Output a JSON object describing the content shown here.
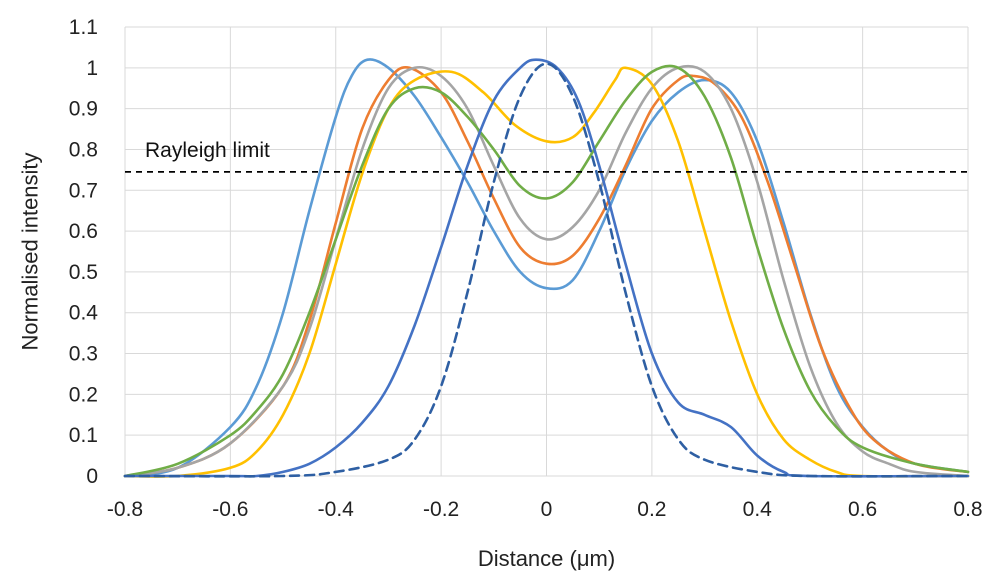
{
  "chart_data": {
    "type": "line",
    "xlabel": "Distance (μm)",
    "ylabel": "Normalised intensity",
    "xlim": [
      -0.8,
      0.8
    ],
    "ylim": [
      0,
      1.1
    ],
    "x_ticks": [
      "-0.8",
      "-0.6",
      "-0.4",
      "-0.2",
      "0",
      "0.2",
      "0.4",
      "0.6",
      "0.8"
    ],
    "y_ticks": [
      "0",
      "0.1",
      "0.2",
      "0.3",
      "0.4",
      "0.5",
      "0.6",
      "0.7",
      "0.8",
      "0.9",
      "1",
      "1.1"
    ],
    "grid": true,
    "reference_line": {
      "label": "Rayleigh limit",
      "y": 0.745,
      "style": "dashed",
      "color": "#000000"
    },
    "series": [
      {
        "color": "#5b9bd5",
        "style": "solid",
        "points": [
          [
            -0.8,
            0.0
          ],
          [
            -0.7,
            0.02
          ],
          [
            -0.6,
            0.12
          ],
          [
            -0.55,
            0.22
          ],
          [
            -0.5,
            0.4
          ],
          [
            -0.45,
            0.65
          ],
          [
            -0.4,
            0.88
          ],
          [
            -0.37,
            0.98
          ],
          [
            -0.34,
            1.02
          ],
          [
            -0.3,
            1.0
          ],
          [
            -0.25,
            0.93
          ],
          [
            -0.2,
            0.83
          ],
          [
            -0.15,
            0.72
          ],
          [
            -0.1,
            0.6
          ],
          [
            -0.05,
            0.5
          ],
          [
            0.0,
            0.46
          ],
          [
            0.05,
            0.48
          ],
          [
            0.1,
            0.6
          ],
          [
            0.15,
            0.75
          ],
          [
            0.2,
            0.87
          ],
          [
            0.25,
            0.94
          ],
          [
            0.3,
            0.97
          ],
          [
            0.35,
            0.94
          ],
          [
            0.4,
            0.82
          ],
          [
            0.45,
            0.62
          ],
          [
            0.5,
            0.4
          ],
          [
            0.55,
            0.22
          ],
          [
            0.6,
            0.12
          ],
          [
            0.65,
            0.06
          ],
          [
            0.7,
            0.03
          ],
          [
            0.8,
            0.01
          ]
        ]
      },
      {
        "color": "#ed7d31",
        "style": "solid",
        "points": [
          [
            -0.8,
            0.0
          ],
          [
            -0.7,
            0.02
          ],
          [
            -0.6,
            0.08
          ],
          [
            -0.5,
            0.22
          ],
          [
            -0.45,
            0.38
          ],
          [
            -0.4,
            0.62
          ],
          [
            -0.35,
            0.85
          ],
          [
            -0.3,
            0.97
          ],
          [
            -0.26,
            1.0
          ],
          [
            -0.2,
            0.94
          ],
          [
            -0.15,
            0.82
          ],
          [
            -0.1,
            0.68
          ],
          [
            -0.05,
            0.56
          ],
          [
            0.0,
            0.52
          ],
          [
            0.05,
            0.54
          ],
          [
            0.1,
            0.63
          ],
          [
            0.15,
            0.76
          ],
          [
            0.2,
            0.9
          ],
          [
            0.25,
            0.97
          ],
          [
            0.28,
            0.98
          ],
          [
            0.32,
            0.96
          ],
          [
            0.37,
            0.88
          ],
          [
            0.42,
            0.72
          ],
          [
            0.47,
            0.52
          ],
          [
            0.52,
            0.32
          ],
          [
            0.57,
            0.18
          ],
          [
            0.62,
            0.09
          ],
          [
            0.7,
            0.03
          ],
          [
            0.8,
            0.01
          ]
        ]
      },
      {
        "color": "#a5a5a5",
        "style": "solid",
        "points": [
          [
            -0.8,
            0.0
          ],
          [
            -0.7,
            0.02
          ],
          [
            -0.6,
            0.08
          ],
          [
            -0.5,
            0.22
          ],
          [
            -0.45,
            0.36
          ],
          [
            -0.4,
            0.58
          ],
          [
            -0.35,
            0.8
          ],
          [
            -0.3,
            0.95
          ],
          [
            -0.25,
            1.0
          ],
          [
            -0.2,
            0.98
          ],
          [
            -0.15,
            0.9
          ],
          [
            -0.1,
            0.76
          ],
          [
            -0.05,
            0.63
          ],
          [
            0.0,
            0.58
          ],
          [
            0.05,
            0.61
          ],
          [
            0.1,
            0.7
          ],
          [
            0.15,
            0.84
          ],
          [
            0.2,
            0.95
          ],
          [
            0.25,
            1.0
          ],
          [
            0.3,
            0.99
          ],
          [
            0.35,
            0.9
          ],
          [
            0.4,
            0.72
          ],
          [
            0.45,
            0.48
          ],
          [
            0.5,
            0.27
          ],
          [
            0.55,
            0.13
          ],
          [
            0.6,
            0.06
          ],
          [
            0.65,
            0.03
          ],
          [
            0.7,
            0.01
          ],
          [
            0.8,
            0.0
          ]
        ]
      },
      {
        "color": "#ffc000",
        "style": "solid",
        "points": [
          [
            -0.8,
            0.0
          ],
          [
            -0.7,
            0.0
          ],
          [
            -0.6,
            0.02
          ],
          [
            -0.55,
            0.06
          ],
          [
            -0.5,
            0.15
          ],
          [
            -0.45,
            0.3
          ],
          [
            -0.4,
            0.52
          ],
          [
            -0.35,
            0.74
          ],
          [
            -0.3,
            0.9
          ],
          [
            -0.25,
            0.97
          ],
          [
            -0.18,
            0.99
          ],
          [
            -0.12,
            0.94
          ],
          [
            -0.06,
            0.86
          ],
          [
            0.0,
            0.82
          ],
          [
            0.05,
            0.83
          ],
          [
            0.09,
            0.89
          ],
          [
            0.13,
            0.97
          ],
          [
            0.15,
            1.0
          ],
          [
            0.2,
            0.96
          ],
          [
            0.25,
            0.82
          ],
          [
            0.3,
            0.6
          ],
          [
            0.35,
            0.38
          ],
          [
            0.4,
            0.2
          ],
          [
            0.45,
            0.09
          ],
          [
            0.5,
            0.04
          ],
          [
            0.55,
            0.01
          ],
          [
            0.6,
            0.0
          ],
          [
            0.8,
            0.0
          ]
        ]
      },
      {
        "color": "#70ad47",
        "style": "solid",
        "points": [
          [
            -0.8,
            0.0
          ],
          [
            -0.7,
            0.03
          ],
          [
            -0.6,
            0.1
          ],
          [
            -0.55,
            0.16
          ],
          [
            -0.5,
            0.25
          ],
          [
            -0.45,
            0.4
          ],
          [
            -0.4,
            0.58
          ],
          [
            -0.35,
            0.76
          ],
          [
            -0.3,
            0.9
          ],
          [
            -0.25,
            0.95
          ],
          [
            -0.2,
            0.94
          ],
          [
            -0.15,
            0.88
          ],
          [
            -0.1,
            0.8
          ],
          [
            -0.05,
            0.71
          ],
          [
            0.0,
            0.68
          ],
          [
            0.05,
            0.72
          ],
          [
            0.1,
            0.82
          ],
          [
            0.15,
            0.92
          ],
          [
            0.2,
            0.99
          ],
          [
            0.25,
            1.0
          ],
          [
            0.3,
            0.93
          ],
          [
            0.35,
            0.78
          ],
          [
            0.4,
            0.56
          ],
          [
            0.45,
            0.36
          ],
          [
            0.5,
            0.21
          ],
          [
            0.55,
            0.12
          ],
          [
            0.6,
            0.07
          ],
          [
            0.7,
            0.03
          ],
          [
            0.8,
            0.01
          ]
        ]
      },
      {
        "color": "#4472c4",
        "style": "solid",
        "points": [
          [
            -0.8,
            0.0
          ],
          [
            -0.6,
            0.0
          ],
          [
            -0.55,
            0.0
          ],
          [
            -0.5,
            0.01
          ],
          [
            -0.45,
            0.03
          ],
          [
            -0.4,
            0.07
          ],
          [
            -0.35,
            0.13
          ],
          [
            -0.3,
            0.22
          ],
          [
            -0.25,
            0.37
          ],
          [
            -0.2,
            0.56
          ],
          [
            -0.15,
            0.76
          ],
          [
            -0.1,
            0.92
          ],
          [
            -0.05,
            1.0
          ],
          [
            -0.02,
            1.02
          ],
          [
            0.02,
            1.0
          ],
          [
            0.06,
            0.92
          ],
          [
            0.1,
            0.76
          ],
          [
            0.15,
            0.52
          ],
          [
            0.2,
            0.3
          ],
          [
            0.25,
            0.18
          ],
          [
            0.3,
            0.15
          ],
          [
            0.35,
            0.12
          ],
          [
            0.4,
            0.05
          ],
          [
            0.45,
            0.01
          ],
          [
            0.5,
            0.0
          ],
          [
            0.8,
            0.0
          ]
        ]
      },
      {
        "color": "#2e5fa3",
        "style": "dashed",
        "points": [
          [
            -0.8,
            0.0
          ],
          [
            -0.5,
            0.0
          ],
          [
            -0.4,
            0.01
          ],
          [
            -0.3,
            0.04
          ],
          [
            -0.25,
            0.09
          ],
          [
            -0.2,
            0.22
          ],
          [
            -0.15,
            0.45
          ],
          [
            -0.1,
            0.72
          ],
          [
            -0.05,
            0.93
          ],
          [
            0.0,
            1.01
          ],
          [
            0.05,
            0.93
          ],
          [
            0.1,
            0.72
          ],
          [
            0.15,
            0.45
          ],
          [
            0.2,
            0.22
          ],
          [
            0.25,
            0.09
          ],
          [
            0.3,
            0.04
          ],
          [
            0.4,
            0.01
          ],
          [
            0.5,
            0.0
          ],
          [
            0.8,
            0.0
          ]
        ]
      }
    ]
  }
}
